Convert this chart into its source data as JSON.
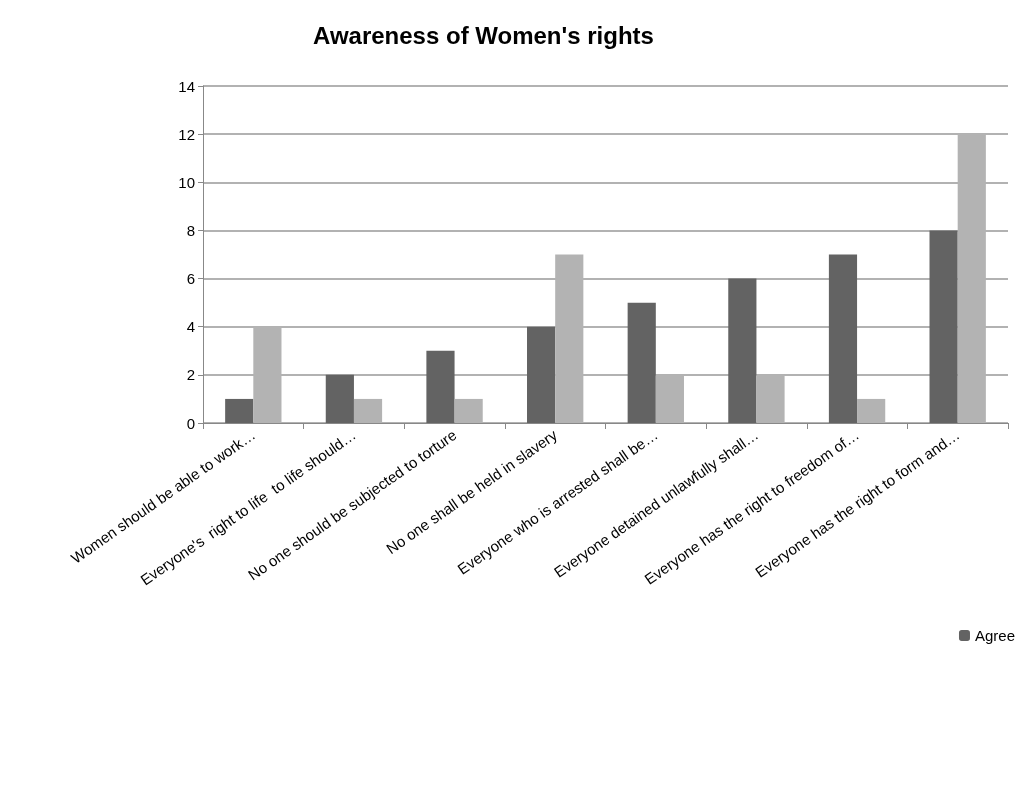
{
  "chart_data": {
    "type": "bar",
    "title": "Awareness of Women's rights",
    "categories": [
      "Women should be able to work…",
      "Everyone's  right to life  to life should…",
      "No one should be subjected to torture",
      "No one shall be held in slavery",
      "Everyone who is arrested shall be…",
      "Everyone detained unlawfully shall…",
      "Everyone has the right to freedom of…",
      "Everyone has the right to form and…"
    ],
    "series": [
      {
        "name": "Agree",
        "color": "#636363",
        "values": [
          1,
          2,
          3,
          4,
          5,
          6,
          7,
          8
        ]
      },
      {
        "color": "#b3b3b3",
        "values": [
          4,
          1,
          1,
          7,
          2,
          2,
          1,
          12
        ]
      }
    ],
    "ylim": [
      0,
      14
    ],
    "yticks": [
      0,
      2,
      4,
      6,
      8,
      10,
      12,
      14
    ],
    "grid": "y",
    "legend": "bottom right"
  }
}
